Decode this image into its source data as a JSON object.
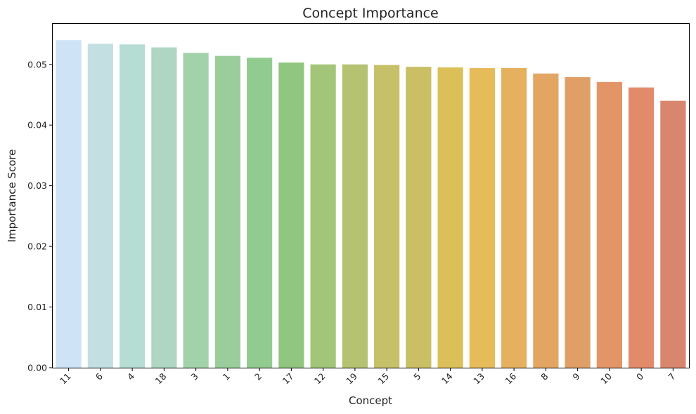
{
  "chart_data": {
    "type": "bar",
    "title": "Concept Importance",
    "xlabel": "Concept",
    "ylabel": "Importance Score",
    "categories": [
      "11",
      "6",
      "4",
      "18",
      "3",
      "1",
      "2",
      "17",
      "12",
      "19",
      "15",
      "5",
      "14",
      "13",
      "16",
      "8",
      "9",
      "10",
      "0",
      "7"
    ],
    "values": [
      0.054,
      0.0534,
      0.0533,
      0.0528,
      0.0519,
      0.0514,
      0.0511,
      0.0503,
      0.05,
      0.05,
      0.0499,
      0.0496,
      0.0495,
      0.0494,
      0.0494,
      0.0485,
      0.0479,
      0.0471,
      0.0462,
      0.044
    ],
    "colors": [
      "#cfe3f6",
      "#c3dfe2",
      "#b6ddd3",
      "#aed6c2",
      "#a2d2aa",
      "#9acd9b",
      "#92cb90",
      "#90c680",
      "#a3c579",
      "#b4c272",
      "#c6c069",
      "#cabf65",
      "#dbbf59",
      "#e6bb5a",
      "#e6b15e",
      "#e3a662",
      "#e09f66",
      "#e39568",
      "#e28b6b",
      "#d9866e"
    ],
    "ylim": [
      0,
      0.0568
    ],
    "yticks": [
      "0.00",
      "0.01",
      "0.02",
      "0.03",
      "0.04",
      "0.05"
    ],
    "ytick_values": [
      0,
      0.01,
      0.02,
      0.03,
      0.04,
      0.05
    ],
    "grid": false,
    "legend": "none"
  }
}
